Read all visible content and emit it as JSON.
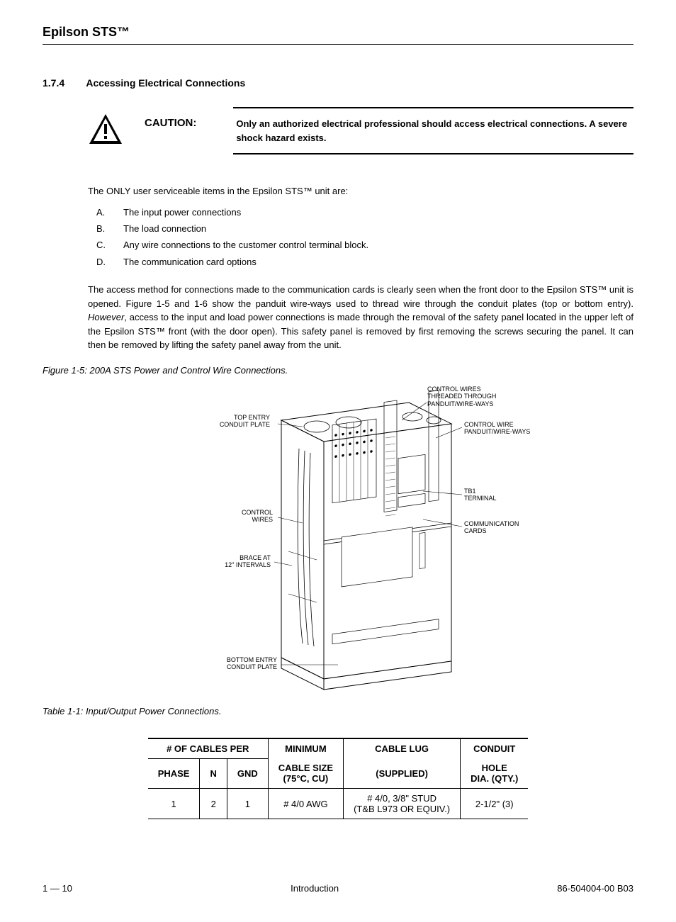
{
  "header": {
    "title": "Epilson STS™"
  },
  "section": {
    "number": "1.7.4",
    "title": "Accessing Electrical Connections"
  },
  "caution": {
    "label": "CAUTION:",
    "text": "Only an authorized electrical professional should access electrical connections.  A severe shock hazard exists."
  },
  "intro_para": "The ONLY user serviceable items in the Epsilon STS™ unit are:",
  "list": [
    {
      "marker": "A.",
      "text": "The input power connections"
    },
    {
      "marker": "B.",
      "text": "The load connection"
    },
    {
      "marker": "C.",
      "text": "Any wire connections to the customer control terminal block."
    },
    {
      "marker": "D.",
      "text": "The communication card options"
    }
  ],
  "body_para": "The access method for connections made to the communication cards is clearly seen when the front door to the Epsilon STS™ unit is opened. Figure 1-5 and 1-6 show the panduit wire-ways used to thread wire through the conduit  plates (top or bottom entry).  However, access to the input and load power connections is made through the removal of the safety panel located in the upper left of the Epsilon STS™ front (with the door open).  This safety panel is removed by first removing the screws securing the panel.  It can then be removed by lifting the safety panel away from the unit.",
  "figure_caption": "Figure 1-5:  200A STS Power and Control Wire Connections.",
  "diagram_labels": {
    "top_entry": "TOP ENTRY\nCONDUIT PLATE",
    "control_wires_left": "CONTROL\nWIRES",
    "brace": "BRACE AT\n12\" INTERVALS",
    "bottom_entry": "BOTTOM ENTRY\nCONDUIT PLATE",
    "control_wires_threaded": "CONTROL WIRES\nTHREADED THROUGH\nPANDUIT/WIRE-WAYS",
    "control_wire_panduit": "CONTROL WIRE\nPANDUIT/WIRE-WAYS",
    "tb1": "TB1\nTERMINAL",
    "comm_cards": "COMMUNICATION\nCARDS"
  },
  "table_caption": "Table 1-1: Input/Output Power Connections.",
  "table": {
    "header1": {
      "cables_per": "# OF CABLES PER",
      "min_cable_size_top": "MINIMUM",
      "min_cable_size_bot": "CABLE SIZE",
      "cable_lug_top": "CABLE LUG",
      "cable_lug_bot": "(SUPPLIED)",
      "conduit_top": "CONDUIT",
      "conduit_bot": "HOLE"
    },
    "header2": {
      "phase": "PHASE",
      "n": "N",
      "gnd": "GND",
      "min_cable": "(75°C, CU)",
      "dia_qty": "DIA.  (QTY.)"
    },
    "row": {
      "phase": "1",
      "n": "2",
      "gnd": "1",
      "min_cable": "# 4/0 AWG",
      "cable_lug1": "# 4/0, 3/8\" STUD",
      "cable_lug2": "(T&B L973 OR EQUIV.)",
      "conduit": "2-1/2\"  (3)"
    }
  },
  "footer": {
    "left": "1 — 10",
    "center": "Introduction",
    "right": "86-504004-00 B03"
  }
}
